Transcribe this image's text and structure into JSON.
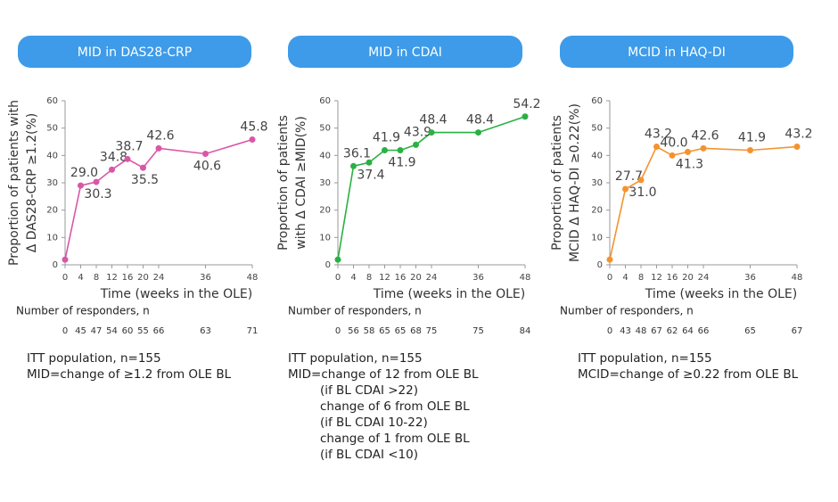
{
  "chart_data": [
    {
      "type": "line",
      "title": "MID in DAS28-CRP",
      "ylabel": [
        "Proportion of patients with",
        "Δ DAS28-CRP ≥1.2(%)"
      ],
      "xlabel": "Time (weeks in the OLE)",
      "x": [
        0,
        4,
        8,
        12,
        16,
        20,
        24,
        36,
        48
      ],
      "values": [
        1.9,
        29.0,
        30.3,
        34.8,
        38.7,
        35.5,
        42.6,
        40.6,
        45.8
      ],
      "value_labels": [
        null,
        "29.0",
        "30.3",
        "34.8",
        "38.7",
        "35.5",
        "42.6",
        "40.6",
        "45.8"
      ],
      "color": "#d957a8",
      "xlim": [
        0,
        48
      ],
      "ylim": [
        0,
        60
      ],
      "xticks": [
        0,
        4,
        8,
        12,
        16,
        20,
        24,
        36,
        48
      ],
      "yticks": [
        0,
        10,
        20,
        30,
        40,
        50,
        60
      ],
      "responders_label": "Number of responders, n",
      "responders": [
        0,
        45,
        47,
        54,
        60,
        55,
        66,
        63,
        71
      ],
      "notes": [
        "ITT population, n=155",
        "MID=change of ≥1.2 from OLE BL"
      ]
    },
    {
      "type": "line",
      "title": "MID in CDAI",
      "ylabel": [
        "Proportion of patients",
        "with Δ CDAI ≥MID(%)"
      ],
      "xlabel": "Time (weeks in the OLE)",
      "x": [
        0,
        4,
        8,
        12,
        16,
        20,
        24,
        36,
        48
      ],
      "values": [
        1.9,
        36.1,
        37.4,
        41.9,
        41.9,
        43.9,
        48.4,
        48.4,
        54.2
      ],
      "value_labels": [
        null,
        "36.1",
        "37.4",
        "41.9",
        "41.9",
        "43.9",
        "48.4",
        "48.4",
        "54.2"
      ],
      "color": "#2ab043",
      "xlim": [
        0,
        48
      ],
      "ylim": [
        0,
        60
      ],
      "xticks": [
        0,
        4,
        8,
        12,
        16,
        20,
        24,
        36,
        48
      ],
      "yticks": [
        0,
        10,
        20,
        30,
        40,
        50,
        60
      ],
      "responders_label": "Number of responders, n",
      "responders": [
        0,
        56,
        58,
        65,
        65,
        68,
        75,
        75,
        84
      ],
      "notes": [
        "ITT population, n=155",
        "MID=change of 12 from OLE BL",
        "(if BL CDAI >22)",
        "change of 6 from OLE BL",
        "(if BL CDAI 10-22)",
        "change of 1 from OLE BL",
        "(if BL CDAI <10)"
      ]
    },
    {
      "type": "line",
      "title": "MCID in HAQ-DI",
      "ylabel": [
        "Proportion of patients",
        "MCID Δ HAQ-DI ≥0.22(%)"
      ],
      "xlabel": "Time (weeks in the OLE)",
      "x": [
        0,
        4,
        8,
        12,
        16,
        20,
        24,
        36,
        48
      ],
      "values": [
        1.9,
        27.7,
        31.0,
        43.2,
        40.0,
        41.3,
        42.6,
        41.9,
        43.2
      ],
      "value_labels": [
        null,
        "27.7",
        "31.0",
        "43.2",
        "40.0",
        "41.3",
        "42.6",
        "41.9",
        "43.2"
      ],
      "color": "#f5922f",
      "xlim": [
        0,
        48
      ],
      "ylim": [
        0,
        60
      ],
      "xticks": [
        0,
        4,
        8,
        12,
        16,
        20,
        24,
        36,
        48
      ],
      "yticks": [
        0,
        10,
        20,
        30,
        40,
        50,
        60
      ],
      "responders_label": "Number of responders, n",
      "responders": [
        0,
        43,
        48,
        67,
        62,
        64,
        66,
        65,
        67
      ],
      "notes": [
        "ITT population, n=155",
        "MCID=change of ≥0.22 from OLE BL"
      ]
    }
  ]
}
